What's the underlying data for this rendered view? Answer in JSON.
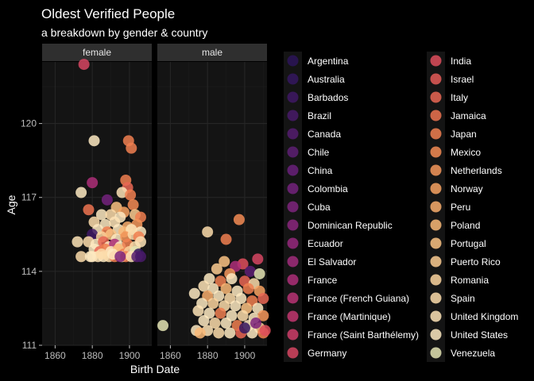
{
  "chart_data": {
    "type": "scatter",
    "title": "Oldest Verified People",
    "subtitle": "a breakdown by gender & country",
    "xlabel": "Birth Date",
    "ylabel": "Age",
    "xlim": [
      1853,
      1912
    ],
    "ylim": [
      111,
      122.5
    ],
    "xticks": [
      "1860",
      "1880",
      "1900"
    ],
    "yticks": [
      "111",
      "114",
      "117",
      "120"
    ],
    "grid": true,
    "legend_position": "right",
    "facets": [
      "female",
      "male"
    ],
    "legend_entries": [
      "Argentina",
      "Australia",
      "Barbados",
      "Brazil",
      "Canada",
      "Chile",
      "China",
      "Colombia",
      "Cuba",
      "Dominican Republic",
      "Ecuador",
      "El Salvador",
      "France",
      "France (French Guiana)",
      "France (Martinique)",
      "France (Saint Barthélemy)",
      "Germany",
      "India",
      "Israel",
      "Italy",
      "Jamaica",
      "Japan",
      "Mexico",
      "Netherlands",
      "Norway",
      "Peru",
      "Poland",
      "Portugal",
      "Puerto Rico",
      "Romania",
      "Spain",
      "United Kingdom",
      "United States",
      "Venezuela"
    ],
    "legend_colors": [
      "#2b1458",
      "#34165f",
      "#3e1864",
      "#481a69",
      "#531c6e",
      "#5d1e73",
      "#68207a",
      "#73227c",
      "#7e247d",
      "#8a267d",
      "#95287d",
      "#a12b7b",
      "#ad2e78",
      "#b83274",
      "#c2366f",
      "#cd3d69",
      "#d64562",
      "#de4d5c",
      "#e45a57",
      "#e96653",
      "#ed7350",
      "#f07f50",
      "#f38b54",
      "#f5975a",
      "#f7a262",
      "#f8ad6c",
      "#f9b877",
      "#fac283",
      "#fbcb90",
      "#fcd49d",
      "#fcdcaa",
      "#fde3b6",
      "#fde9c1",
      "#e3e3b3"
    ],
    "series": [
      {
        "name": "female",
        "points": [
          [
            1875.5,
            122.4,
            "Germany"
          ],
          [
            1881,
            119.3,
            "United States"
          ],
          [
            1899.5,
            119.3,
            "Japan"
          ],
          [
            1901,
            119.0,
            "Japan"
          ],
          [
            1880,
            117.6,
            "France"
          ],
          [
            1898,
            117.7,
            "Japan"
          ],
          [
            1899,
            117.4,
            "Italy"
          ],
          [
            1896,
            117.2,
            "United Kingdom"
          ],
          [
            1874,
            117.2,
            "United States"
          ],
          [
            1900.5,
            117.1,
            "Japan"
          ],
          [
            1888,
            116.9,
            "Colombia"
          ],
          [
            1893,
            116.6,
            "Portugal"
          ],
          [
            1897,
            116.4,
            "Norway"
          ],
          [
            1902,
            116.7,
            "Mexico"
          ],
          [
            1878,
            116.5,
            "Jamaica"
          ],
          [
            1885,
            116.3,
            "United States"
          ],
          [
            1890,
            116.3,
            "Spain"
          ],
          [
            1895,
            116.2,
            "United States"
          ],
          [
            1903,
            116.3,
            "Puerto Rico"
          ],
          [
            1906,
            116.2,
            "Japan"
          ],
          [
            1881,
            116.0,
            "Spain"
          ],
          [
            1887,
            115.9,
            "United States"
          ],
          [
            1892,
            116.0,
            "United Kingdom"
          ],
          [
            1899,
            115.8,
            "Peru"
          ],
          [
            1904,
            115.9,
            "Netherlands"
          ],
          [
            1883,
            115.7,
            "United States"
          ],
          [
            1888,
            115.6,
            "Japan"
          ],
          [
            1894,
            115.7,
            "United States"
          ],
          [
            1897,
            115.6,
            "Poland"
          ],
          [
            1901,
            115.7,
            "United Kingdom"
          ],
          [
            1906,
            115.6,
            "United States"
          ],
          [
            1880,
            115.5,
            "Barbados"
          ],
          [
            1885,
            115.4,
            "Romania"
          ],
          [
            1890,
            115.5,
            "Portugal"
          ],
          [
            1893,
            115.3,
            "United States"
          ],
          [
            1898,
            115.4,
            "Netherlands"
          ],
          [
            1902,
            115.5,
            "Spain"
          ],
          [
            1905,
            115.4,
            "Japan"
          ],
          [
            1872,
            115.2,
            "United Kingdom"
          ],
          [
            1878,
            115.2,
            "Spain"
          ],
          [
            1882,
            115.1,
            "United States"
          ],
          [
            1886,
            115.2,
            "Italy"
          ],
          [
            1889,
            115.0,
            "United States"
          ],
          [
            1892,
            115.1,
            "France"
          ],
          [
            1895,
            115.0,
            "United States"
          ],
          [
            1899,
            115.1,
            "Japan"
          ],
          [
            1903,
            115.0,
            "Spain"
          ],
          [
            1906,
            115.2,
            "United Kingdom"
          ],
          [
            1881,
            114.9,
            "United States"
          ],
          [
            1884,
            114.8,
            "Italy"
          ],
          [
            1887,
            114.9,
            "Japan"
          ],
          [
            1890,
            114.8,
            "United States"
          ],
          [
            1894,
            114.9,
            "Poland"
          ],
          [
            1897,
            114.7,
            "Japan"
          ],
          [
            1900,
            114.8,
            "Romania"
          ],
          [
            1903,
            114.8,
            "Venezuela"
          ],
          [
            1905,
            114.7,
            "Argentina"
          ],
          [
            1874,
            114.6,
            "Spain"
          ],
          [
            1880,
            114.6,
            "United States"
          ],
          [
            1883,
            114.6,
            "United Kingdom"
          ],
          [
            1886,
            114.6,
            "United States"
          ],
          [
            1889,
            114.6,
            "Spain"
          ],
          [
            1892,
            114.6,
            "Japan"
          ],
          [
            1896,
            114.6,
            "United States"
          ],
          [
            1898,
            114.6,
            "Japan"
          ],
          [
            1901,
            114.6,
            "United Kingdom"
          ],
          [
            1904,
            114.6,
            "Canada"
          ],
          [
            1906,
            114.6,
            "Brazil"
          ],
          [
            1879,
            114.6,
            "United States"
          ],
          [
            1885,
            114.7,
            "Spain"
          ],
          [
            1891,
            114.7,
            "United States"
          ],
          [
            1895,
            114.6,
            "Cuba"
          ]
        ]
      },
      {
        "name": "male",
        "points": [
          [
            1856,
            111.8,
            "Venezuela"
          ],
          [
            1880,
            115.6,
            "Spain"
          ],
          [
            1897,
            116.1,
            "Mexico"
          ],
          [
            1890,
            115.3,
            "Japan"
          ],
          [
            1907,
            114.5,
            "Germany"
          ],
          [
            1889,
            114.4,
            "Portugal"
          ],
          [
            1899,
            114.3,
            "India"
          ],
          [
            1895,
            114.2,
            "France"
          ],
          [
            1885,
            114.1,
            "Puerto Rico"
          ],
          [
            1903,
            114.0,
            "Chile"
          ],
          [
            1892,
            113.9,
            "Netherlands"
          ],
          [
            1908,
            113.9,
            "Venezuela"
          ],
          [
            1881,
            113.7,
            "United States"
          ],
          [
            1887,
            113.6,
            "Japan"
          ],
          [
            1893,
            113.7,
            "United States"
          ],
          [
            1900,
            113.6,
            "Italy"
          ],
          [
            1905,
            113.5,
            "Spain"
          ],
          [
            1878,
            113.4,
            "United Kingdom"
          ],
          [
            1883,
            113.3,
            "United States"
          ],
          [
            1890,
            113.3,
            "Poland"
          ],
          [
            1896,
            113.2,
            "United States"
          ],
          [
            1902,
            113.3,
            "Japan"
          ],
          [
            1908,
            113.2,
            "Norway"
          ],
          [
            1873,
            113.1,
            "United States"
          ],
          [
            1880,
            113.0,
            "Peru"
          ],
          [
            1886,
            113.0,
            "United States"
          ],
          [
            1892,
            112.9,
            "Spain"
          ],
          [
            1898,
            112.9,
            "United States"
          ],
          [
            1904,
            112.8,
            "Japan"
          ],
          [
            1910,
            112.9,
            "Italy"
          ],
          [
            1877,
            112.7,
            "United States"
          ],
          [
            1883,
            112.7,
            "Romania"
          ],
          [
            1889,
            112.6,
            "Spain"
          ],
          [
            1895,
            112.6,
            "United States"
          ],
          [
            1901,
            112.5,
            "Portugal"
          ],
          [
            1907,
            112.5,
            "United States"
          ],
          [
            1875,
            112.4,
            "United Kingdom"
          ],
          [
            1881,
            112.3,
            "United States"
          ],
          [
            1887,
            112.3,
            "Japan"
          ],
          [
            1893,
            112.2,
            "United States"
          ],
          [
            1899,
            112.2,
            "Spain"
          ],
          [
            1905,
            112.1,
            "United States"
          ],
          [
            1910,
            112.2,
            "Netherlands"
          ],
          [
            1878,
            112.0,
            "United States"
          ],
          [
            1884,
            111.9,
            "Spain"
          ],
          [
            1890,
            111.9,
            "United States"
          ],
          [
            1896,
            111.8,
            "Japan"
          ],
          [
            1902,
            111.8,
            "United States"
          ],
          [
            1908,
            111.7,
            "Puerto Rico"
          ],
          [
            1874,
            111.6,
            "United States"
          ],
          [
            1880,
            111.6,
            "United Kingdom"
          ],
          [
            1886,
            111.5,
            "Spain"
          ],
          [
            1892,
            111.5,
            "United States"
          ],
          [
            1898,
            111.5,
            "Italy"
          ],
          [
            1904,
            111.5,
            "United States"
          ],
          [
            1910,
            111.5,
            "Japan"
          ],
          [
            1911,
            111.6,
            "India"
          ],
          [
            1876,
            111.5,
            "Poland"
          ],
          [
            1900,
            111.7,
            "Australia"
          ],
          [
            1906,
            111.9,
            "Cuba"
          ]
        ]
      }
    ]
  }
}
